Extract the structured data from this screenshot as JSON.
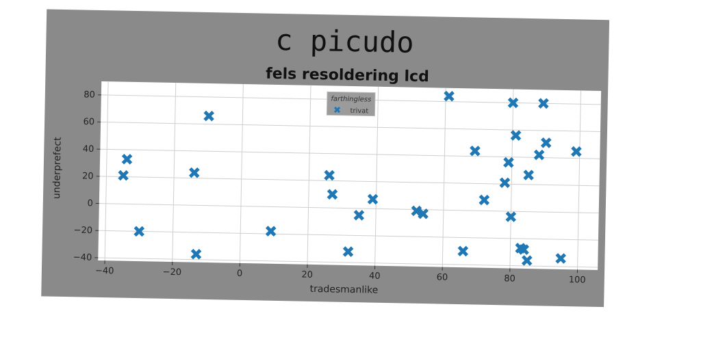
{
  "chart_data": {
    "type": "scatter",
    "title": "c picudo",
    "subtitle": "fels resoldering lcd",
    "xlabel": "tradesmanlike",
    "ylabel": "underprefect",
    "xlim": [
      -42,
      106
    ],
    "ylim": [
      -42,
      90
    ],
    "xticks": [
      -40,
      -20,
      0,
      20,
      40,
      60,
      80,
      100
    ],
    "yticks": [
      -40,
      -20,
      0,
      20,
      40,
      60,
      80
    ],
    "xtick_labels": [
      "−40",
      "−20",
      "0",
      "20",
      "40",
      "60",
      "80",
      "100"
    ],
    "ytick_labels": [
      "−40",
      "−20",
      "0",
      "20",
      "40",
      "60",
      "80"
    ],
    "grid": true,
    "legend": {
      "title": "farthingless",
      "placement": "top-center"
    },
    "series": [
      {
        "name": "trivat",
        "marker": "x",
        "color": "#1f77b4",
        "points": [
          {
            "x": -35,
            "y": 21
          },
          {
            "x": -34,
            "y": 33
          },
          {
            "x": -30,
            "y": -20
          },
          {
            "x": -14,
            "y": 24
          },
          {
            "x": -13,
            "y": -36
          },
          {
            "x": -10,
            "y": 66
          },
          {
            "x": 9,
            "y": -18
          },
          {
            "x": 26,
            "y": 24
          },
          {
            "x": 27,
            "y": 10
          },
          {
            "x": 32,
            "y": -32
          },
          {
            "x": 35,
            "y": -5
          },
          {
            "x": 39,
            "y": 7
          },
          {
            "x": 52,
            "y": -1
          },
          {
            "x": 54,
            "y": -3
          },
          {
            "x": 61,
            "y": 84
          },
          {
            "x": 66,
            "y": -30
          },
          {
            "x": 69,
            "y": 44
          },
          {
            "x": 72,
            "y": 8
          },
          {
            "x": 78,
            "y": 21
          },
          {
            "x": 79,
            "y": 36
          },
          {
            "x": 80,
            "y": 80
          },
          {
            "x": 80,
            "y": -4
          },
          {
            "x": 81,
            "y": 56
          },
          {
            "x": 83,
            "y": -27
          },
          {
            "x": 84,
            "y": -28
          },
          {
            "x": 85,
            "y": 27
          },
          {
            "x": 85,
            "y": -36
          },
          {
            "x": 88,
            "y": 42
          },
          {
            "x": 89,
            "y": 80
          },
          {
            "x": 90,
            "y": 51
          },
          {
            "x": 95,
            "y": -34
          },
          {
            "x": 99,
            "y": 45
          }
        ]
      }
    ]
  }
}
